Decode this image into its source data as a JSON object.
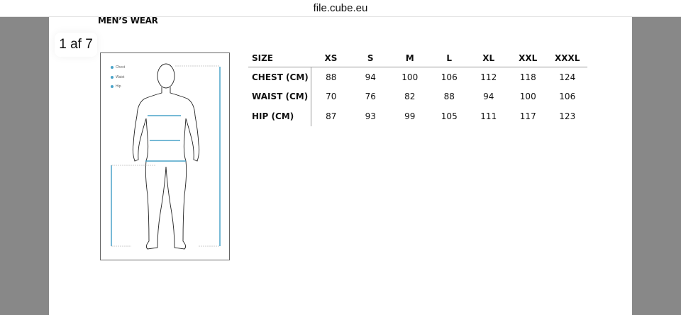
{
  "browser": {
    "url": "file.cube.eu"
  },
  "document": {
    "title": "MEN’S WEAR",
    "page_indicator": "1 af 7"
  },
  "figure": {
    "legend": [
      "Chest",
      "Waist",
      "Hip"
    ],
    "accent_color": "#4aa3c8"
  },
  "size_table": {
    "headers": [
      "SIZE",
      "XS",
      "S",
      "M",
      "L",
      "XL",
      "XXL",
      "XXXL"
    ],
    "rows": [
      {
        "label": "CHEST (CM)",
        "values": [
          "88",
          "94",
          "100",
          "106",
          "112",
          "118",
          "124"
        ]
      },
      {
        "label": "WAIST (CM)",
        "values": [
          "70",
          "76",
          "82",
          "88",
          "94",
          "100",
          "106"
        ]
      },
      {
        "label": "HIP (CM)",
        "values": [
          "87",
          "93",
          "99",
          "105",
          "111",
          "117",
          "123"
        ]
      }
    ]
  }
}
